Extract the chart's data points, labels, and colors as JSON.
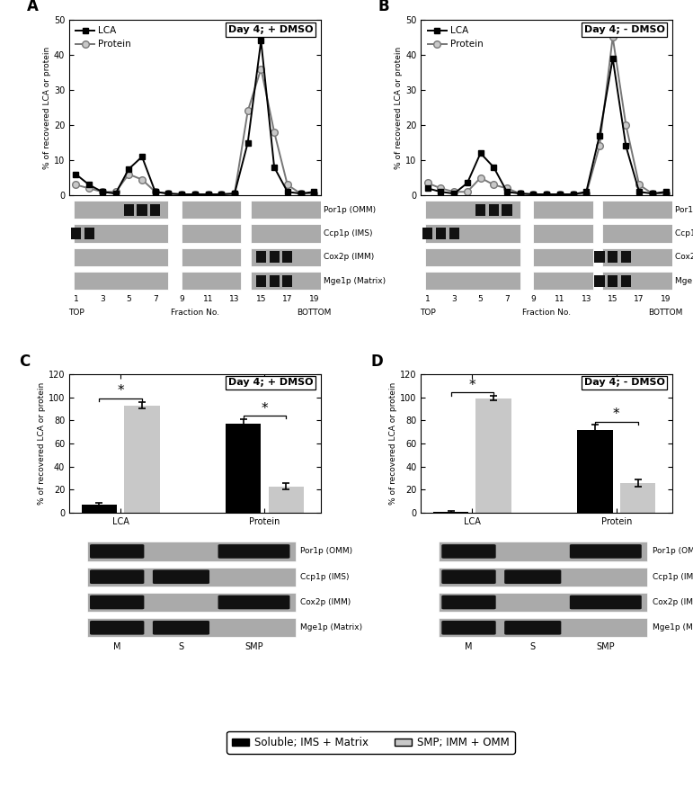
{
  "panel_A": {
    "title": "Day 4; + DMSO",
    "fractions": [
      1,
      2,
      3,
      4,
      5,
      6,
      7,
      8,
      9,
      10,
      11,
      12,
      13,
      14,
      15,
      16,
      17,
      18,
      19
    ],
    "LCA": [
      6.0,
      3.0,
      1.0,
      0.5,
      7.5,
      11.0,
      1.0,
      0.5,
      0.3,
      0.3,
      0.3,
      0.3,
      0.5,
      15.0,
      44.0,
      8.0,
      1.0,
      0.5,
      1.0
    ],
    "Protein": [
      3.0,
      2.0,
      1.0,
      1.0,
      6.0,
      4.5,
      1.0,
      0.5,
      0.3,
      0.3,
      0.3,
      0.3,
      0.5,
      24.0,
      36.0,
      18.0,
      3.0,
      0.5,
      0.5
    ],
    "wb_bands": {
      "Por1p": [
        5,
        6,
        7
      ],
      "Ccp1p": [
        1,
        2
      ],
      "Cox2p": [
        15,
        16,
        17
      ],
      "Mge1p": [
        15,
        16,
        17
      ]
    }
  },
  "panel_B": {
    "title": "Day 4; - DMSO",
    "fractions": [
      1,
      2,
      3,
      4,
      5,
      6,
      7,
      8,
      9,
      10,
      11,
      12,
      13,
      14,
      15,
      16,
      17,
      18,
      19
    ],
    "LCA": [
      2.0,
      1.0,
      0.5,
      3.5,
      12.0,
      8.0,
      1.0,
      0.5,
      0.3,
      0.3,
      0.3,
      0.3,
      1.0,
      17.0,
      39.0,
      14.0,
      1.0,
      0.5,
      1.0
    ],
    "Protein": [
      3.5,
      2.0,
      1.0,
      1.0,
      5.0,
      3.0,
      2.0,
      0.5,
      0.3,
      0.3,
      0.3,
      0.3,
      0.5,
      14.0,
      45.0,
      20.0,
      3.0,
      0.5,
      0.5
    ],
    "wb_bands": {
      "Por1p": [
        5,
        6,
        7
      ],
      "Ccp1p": [
        1,
        2,
        3
      ],
      "Cox2p": [
        14,
        15,
        16
      ],
      "Mge1p": [
        14,
        15,
        16
      ]
    }
  },
  "panel_C": {
    "title": "Day 4; + DMSO",
    "LCA_black": 7,
    "LCA_black_err": 2,
    "LCA_gray": 93,
    "LCA_gray_err": 3,
    "Protein_black": 77,
    "Protein_black_err": 4,
    "Protein_gray": 23,
    "Protein_gray_err": 3
  },
  "panel_D": {
    "title": "Day 4; - DMSO",
    "LCA_black": 1,
    "LCA_black_err": 0.5,
    "LCA_gray": 99,
    "LCA_gray_err": 2,
    "Protein_black": 72,
    "Protein_black_err": 4,
    "Protein_gray": 26,
    "Protein_gray_err": 3
  },
  "colors": {
    "black": "#000000",
    "light_gray": "#c8c8c8",
    "wb_bg": "#aaaaaa",
    "wb_dark": "#111111"
  },
  "ylabel": "% of recovered LCA or protein",
  "xlabel_line": "Fraction No.",
  "ylim_line": [
    0,
    50
  ],
  "ylim_bar": [
    0,
    120
  ],
  "yticks_line": [
    0,
    10,
    20,
    30,
    40,
    50
  ],
  "yticks_bar": [
    0,
    20,
    40,
    60,
    80,
    100,
    120
  ],
  "xticks_line": [
    1,
    3,
    5,
    7,
    9,
    11,
    13,
    15,
    17,
    19
  ],
  "wb_labels": [
    "Por1p (OMM)",
    "Ccp1p (IMS)",
    "Cox2p (IMM)",
    "Mge1p (Matrix)"
  ],
  "lane_labels": [
    "M",
    "S",
    "SMP"
  ],
  "legend_black": "Soluble; IMS + Matrix",
  "legend_gray": "SMP; IMM + OMM"
}
